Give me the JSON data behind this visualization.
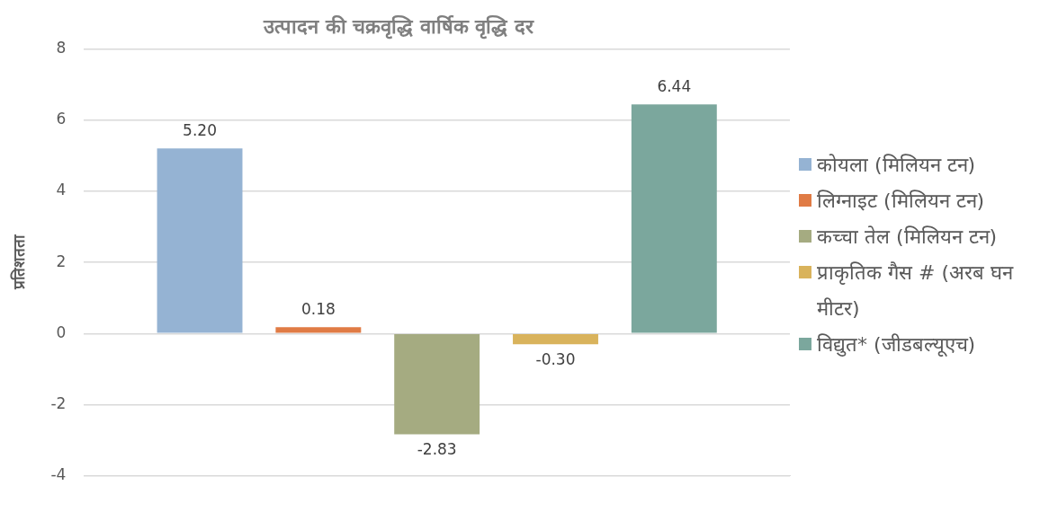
{
  "chart_data": {
    "type": "bar",
    "title": "उत्पादन की चक्रवृद्धि वार्षिक वृद्धि दर",
    "ylabel": "प्रतिशतता",
    "categories": [
      null
    ],
    "series": [
      {
        "name": "कोयला (मिलियन टन)",
        "color": "#95b3d3",
        "values": [
          5.2
        ],
        "value_labels": [
          "5.20"
        ]
      },
      {
        "name": "लिग्नाइट (मिलियन टन)",
        "color": "#e07b45",
        "values": [
          0.18
        ],
        "value_labels": [
          "0.18"
        ]
      },
      {
        "name": "कच्चा तेल (मिलियन टन)",
        "color": "#a5ab81",
        "values": [
          -2.83
        ],
        "value_labels": [
          "-2.83"
        ]
      },
      {
        "name": "प्राकृतिक गैस # (अरब घन मीटर)",
        "color": "#d9b35c",
        "values": [
          -0.3
        ],
        "value_labels": [
          "-0.30"
        ]
      },
      {
        "name": "विद्युत* (जीडबल्यूएच)",
        "color": "#7ba79d",
        "values": [
          6.44
        ],
        "value_labels": [
          "6.44"
        ]
      }
    ],
    "ylim": [
      -4,
      8
    ],
    "yticks": [
      -4,
      -2,
      0,
      2,
      4,
      6,
      8
    ],
    "grid": "y",
    "legend": "right"
  }
}
